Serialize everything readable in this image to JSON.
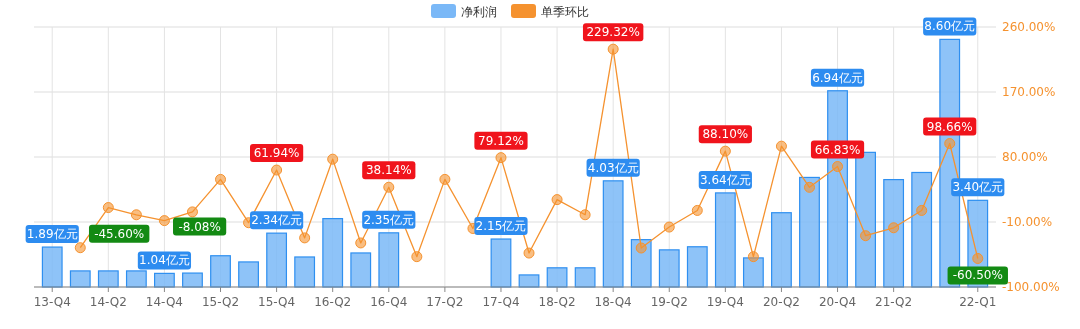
{
  "chart_data": {
    "type": "bar",
    "categories": [
      "13-Q4",
      null,
      "14-Q2",
      null,
      "14-Q4",
      null,
      "15-Q2",
      null,
      "15-Q4",
      null,
      "16-Q2",
      null,
      "16-Q4",
      null,
      "17-Q2",
      null,
      "17-Q4",
      null,
      "18-Q2",
      null,
      "18-Q4",
      null,
      "19-Q2",
      null,
      "19-Q4",
      null,
      "20-Q2",
      null,
      "20-Q4",
      null,
      "21-Q2",
      null,
      null,
      "22-Q1"
    ],
    "series": [
      {
        "name": "净利润",
        "axis": "y",
        "color": "#7ab8f7",
        "values": [
          1.89,
          1.12,
          1.12,
          1.12,
          1.04,
          1.05,
          1.61,
          1.41,
          2.34,
          1.57,
          2.81,
          1.7,
          2.35,
          null,
          null,
          null,
          2.15,
          0.99,
          1.22,
          1.22,
          4.03,
          2.13,
          1.8,
          1.9,
          3.64,
          1.54,
          3.0,
          4.14,
          6.94,
          4.95,
          4.07,
          4.3,
          8.6,
          3.4
        ],
        "value_labels": [
          "1.89亿元",
          null,
          null,
          null,
          "1.04亿元",
          null,
          null,
          null,
          "2.34亿元",
          null,
          null,
          null,
          "2.35亿元",
          null,
          null,
          null,
          "2.15亿元",
          null,
          null,
          null,
          "4.03亿元",
          null,
          null,
          null,
          "3.64亿元",
          null,
          null,
          null,
          "6.94亿元",
          null,
          null,
          null,
          "8.60亿元",
          "3.40亿元"
        ]
      },
      {
        "name": "单季环比",
        "type": "line",
        "axis": "y2",
        "color": "#f5922f",
        "values": [
          null,
          -45.6,
          10,
          0,
          -8.08,
          4,
          49,
          -11,
          61.94,
          -32,
          77,
          -39,
          38.14,
          -58,
          49,
          -19,
          79.12,
          -53,
          21,
          0,
          229.32,
          -46,
          -17,
          6,
          88.1,
          -58,
          95,
          38,
          66.83,
          -29,
          -18,
          6,
          98.66,
          -60.5
        ],
        "value_labels": [
          null,
          "-45.60%",
          null,
          null,
          "-8.08%",
          null,
          null,
          null,
          "61.94%",
          null,
          null,
          null,
          "38.14%",
          null,
          null,
          null,
          "79.12%",
          null,
          null,
          null,
          "229.32%",
          null,
          null,
          null,
          "88.10%",
          null,
          null,
          null,
          "66.83%",
          null,
          null,
          null,
          "98.66%",
          "-60.50%"
        ]
      }
    ],
    "ylim": [
      0.6,
      9.0
    ],
    "y2lim": [
      -100,
      260
    ],
    "y2ticks": [
      {
        "value": -100,
        "label": "-100.00%"
      },
      {
        "value": -10,
        "label": "-10.00%"
      },
      {
        "value": 80,
        "label": "80.00%"
      },
      {
        "value": 170,
        "label": "170.00%"
      },
      {
        "value": 260,
        "label": "260.00%"
      }
    ],
    "grid": true,
    "legend": "top",
    "marker": "circle"
  }
}
